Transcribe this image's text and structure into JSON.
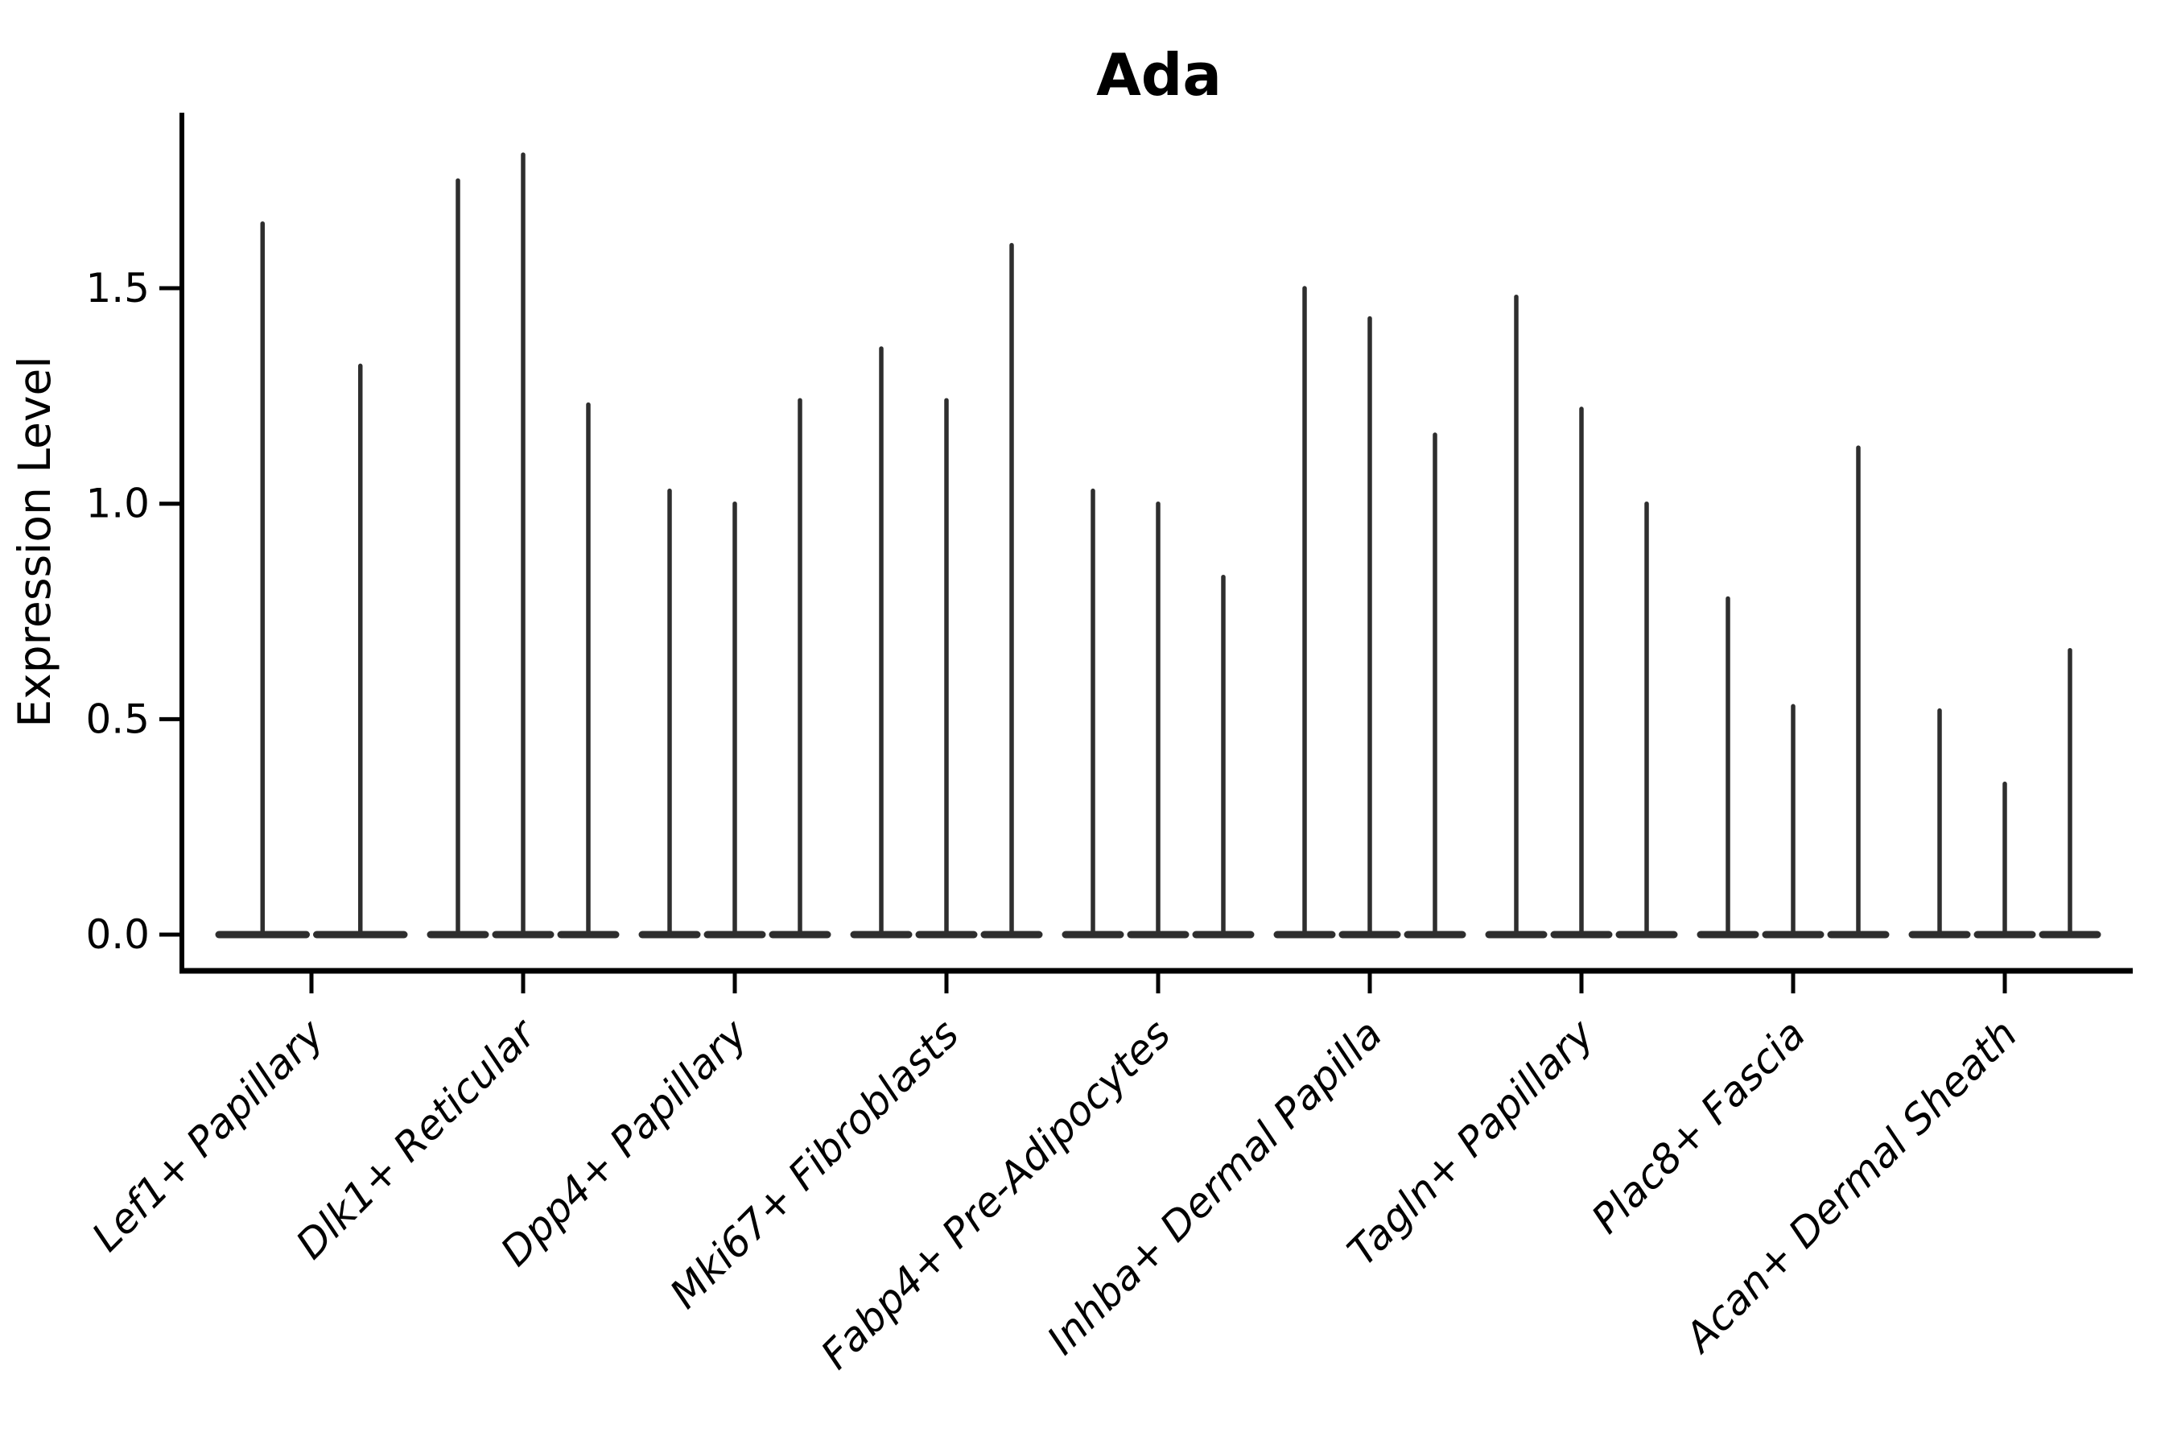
{
  "chart_data": {
    "type": "violin",
    "title": "Ada",
    "xlabel": "",
    "ylabel": "Expression Level",
    "ylim": [
      -0.084,
      1.908
    ],
    "yticks": [
      0.0,
      0.5,
      1.0,
      1.5
    ],
    "ytick_labels": [
      "0.0",
      "0.5",
      "1.0",
      "1.5"
    ],
    "grid": "off",
    "legend": "none",
    "x_label_rotation_deg": 45,
    "x_label_style": "italic",
    "categories": [
      "Lef1+ Papillary",
      "Dlk1+ Reticular",
      "Dpp4+ Papillary",
      "Mki67+ Fibroblasts",
      "Fabp4+ Pre-Adipocytes",
      "Inhba+ Dermal Papilla",
      "Tagln+ Papillary",
      "Plac8+ Fascia",
      "Acan+ Dermal Sheath"
    ],
    "groups": [
      {
        "label": "Lef1+ Papillary",
        "violin_maxima": [
          1.65,
          1.32
        ]
      },
      {
        "label": "Dlk1+ Reticular",
        "violin_maxima": [
          1.75,
          1.81,
          1.23
        ]
      },
      {
        "label": "Dpp4+ Papillary",
        "violin_maxima": [
          1.03,
          1.0,
          1.24
        ]
      },
      {
        "label": "Mki67+ Fibroblasts",
        "violin_maxima": [
          1.36,
          1.24,
          1.6
        ]
      },
      {
        "label": "Fabp4+ Pre-Adipocytes",
        "violin_maxima": [
          1.03,
          1.0,
          0.83
        ]
      },
      {
        "label": "Inhba+ Dermal Papilla",
        "violin_maxima": [
          1.5,
          1.43,
          1.16
        ]
      },
      {
        "label": "Tagln+ Papillary",
        "violin_maxima": [
          1.48,
          1.22,
          1.0
        ]
      },
      {
        "label": "Plac8+ Fascia",
        "violin_maxima": [
          0.78,
          0.53,
          1.13
        ]
      },
      {
        "label": "Acan+ Dermal Sheath",
        "violin_maxima": [
          0.52,
          0.35,
          0.66
        ]
      }
    ],
    "violins_per_group_note": "each violin is density collapsed at 0 with a thin spike to its max",
    "colors": {
      "violin": "#2e2e2e",
      "axis": "#000000",
      "text": "#000000",
      "background": "#ffffff"
    }
  }
}
